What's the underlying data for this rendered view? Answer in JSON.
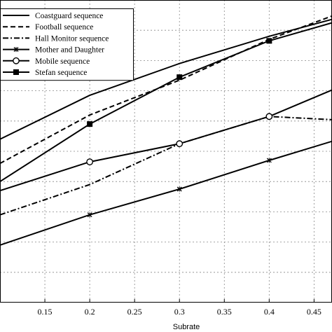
{
  "chart_data": {
    "type": "line",
    "title": "",
    "xlabel": "Subrate",
    "ylabel": "",
    "xlim": [
      0.1,
      0.47
    ],
    "ylim": [
      0,
      10
    ],
    "grid": true,
    "legend_position": "top-left",
    "x_ticks": [
      "0.15",
      "0.2",
      "0.25",
      "0.3",
      "0.35",
      "0.4",
      "0.45"
    ],
    "series": [
      {
        "name": "Coastguard sequence",
        "line": "solid",
        "marker": "none",
        "x": [
          0.1,
          0.2,
          0.3,
          0.4,
          0.5
        ],
        "y": [
          5.4,
          6.85,
          7.9,
          8.8,
          9.6
        ]
      },
      {
        "name": "Football sequence",
        "line": "dashed",
        "marker": "none",
        "x": [
          0.1,
          0.2,
          0.3,
          0.4,
          0.5
        ],
        "y": [
          4.6,
          6.2,
          7.35,
          8.7,
          9.8
        ]
      },
      {
        "name": "Hall Monitor sequence",
        "line": "dashdot",
        "marker": "none",
        "x": [
          0.1,
          0.2,
          0.3,
          0.4,
          0.5
        ],
        "y": [
          2.9,
          3.9,
          5.25,
          6.15,
          6.0
        ]
      },
      {
        "name": "Mother and Daughter",
        "line": "solid",
        "marker": "x",
        "x": [
          0.1,
          0.2,
          0.3,
          0.4,
          0.5
        ],
        "y": [
          1.9,
          2.9,
          3.75,
          4.7,
          5.6
        ]
      },
      {
        "name": "Mobile sequence",
        "line": "solid",
        "marker": "circle",
        "x": [
          0.1,
          0.2,
          0.3,
          0.4,
          0.5
        ],
        "y": [
          3.7,
          4.65,
          5.25,
          6.15,
          7.4
        ]
      },
      {
        "name": "Stefan sequence",
        "line": "solid",
        "marker": "square",
        "x": [
          0.1,
          0.2,
          0.3,
          0.4,
          0.5
        ],
        "y": [
          4.0,
          5.9,
          7.45,
          8.65,
          9.5
        ]
      }
    ]
  }
}
